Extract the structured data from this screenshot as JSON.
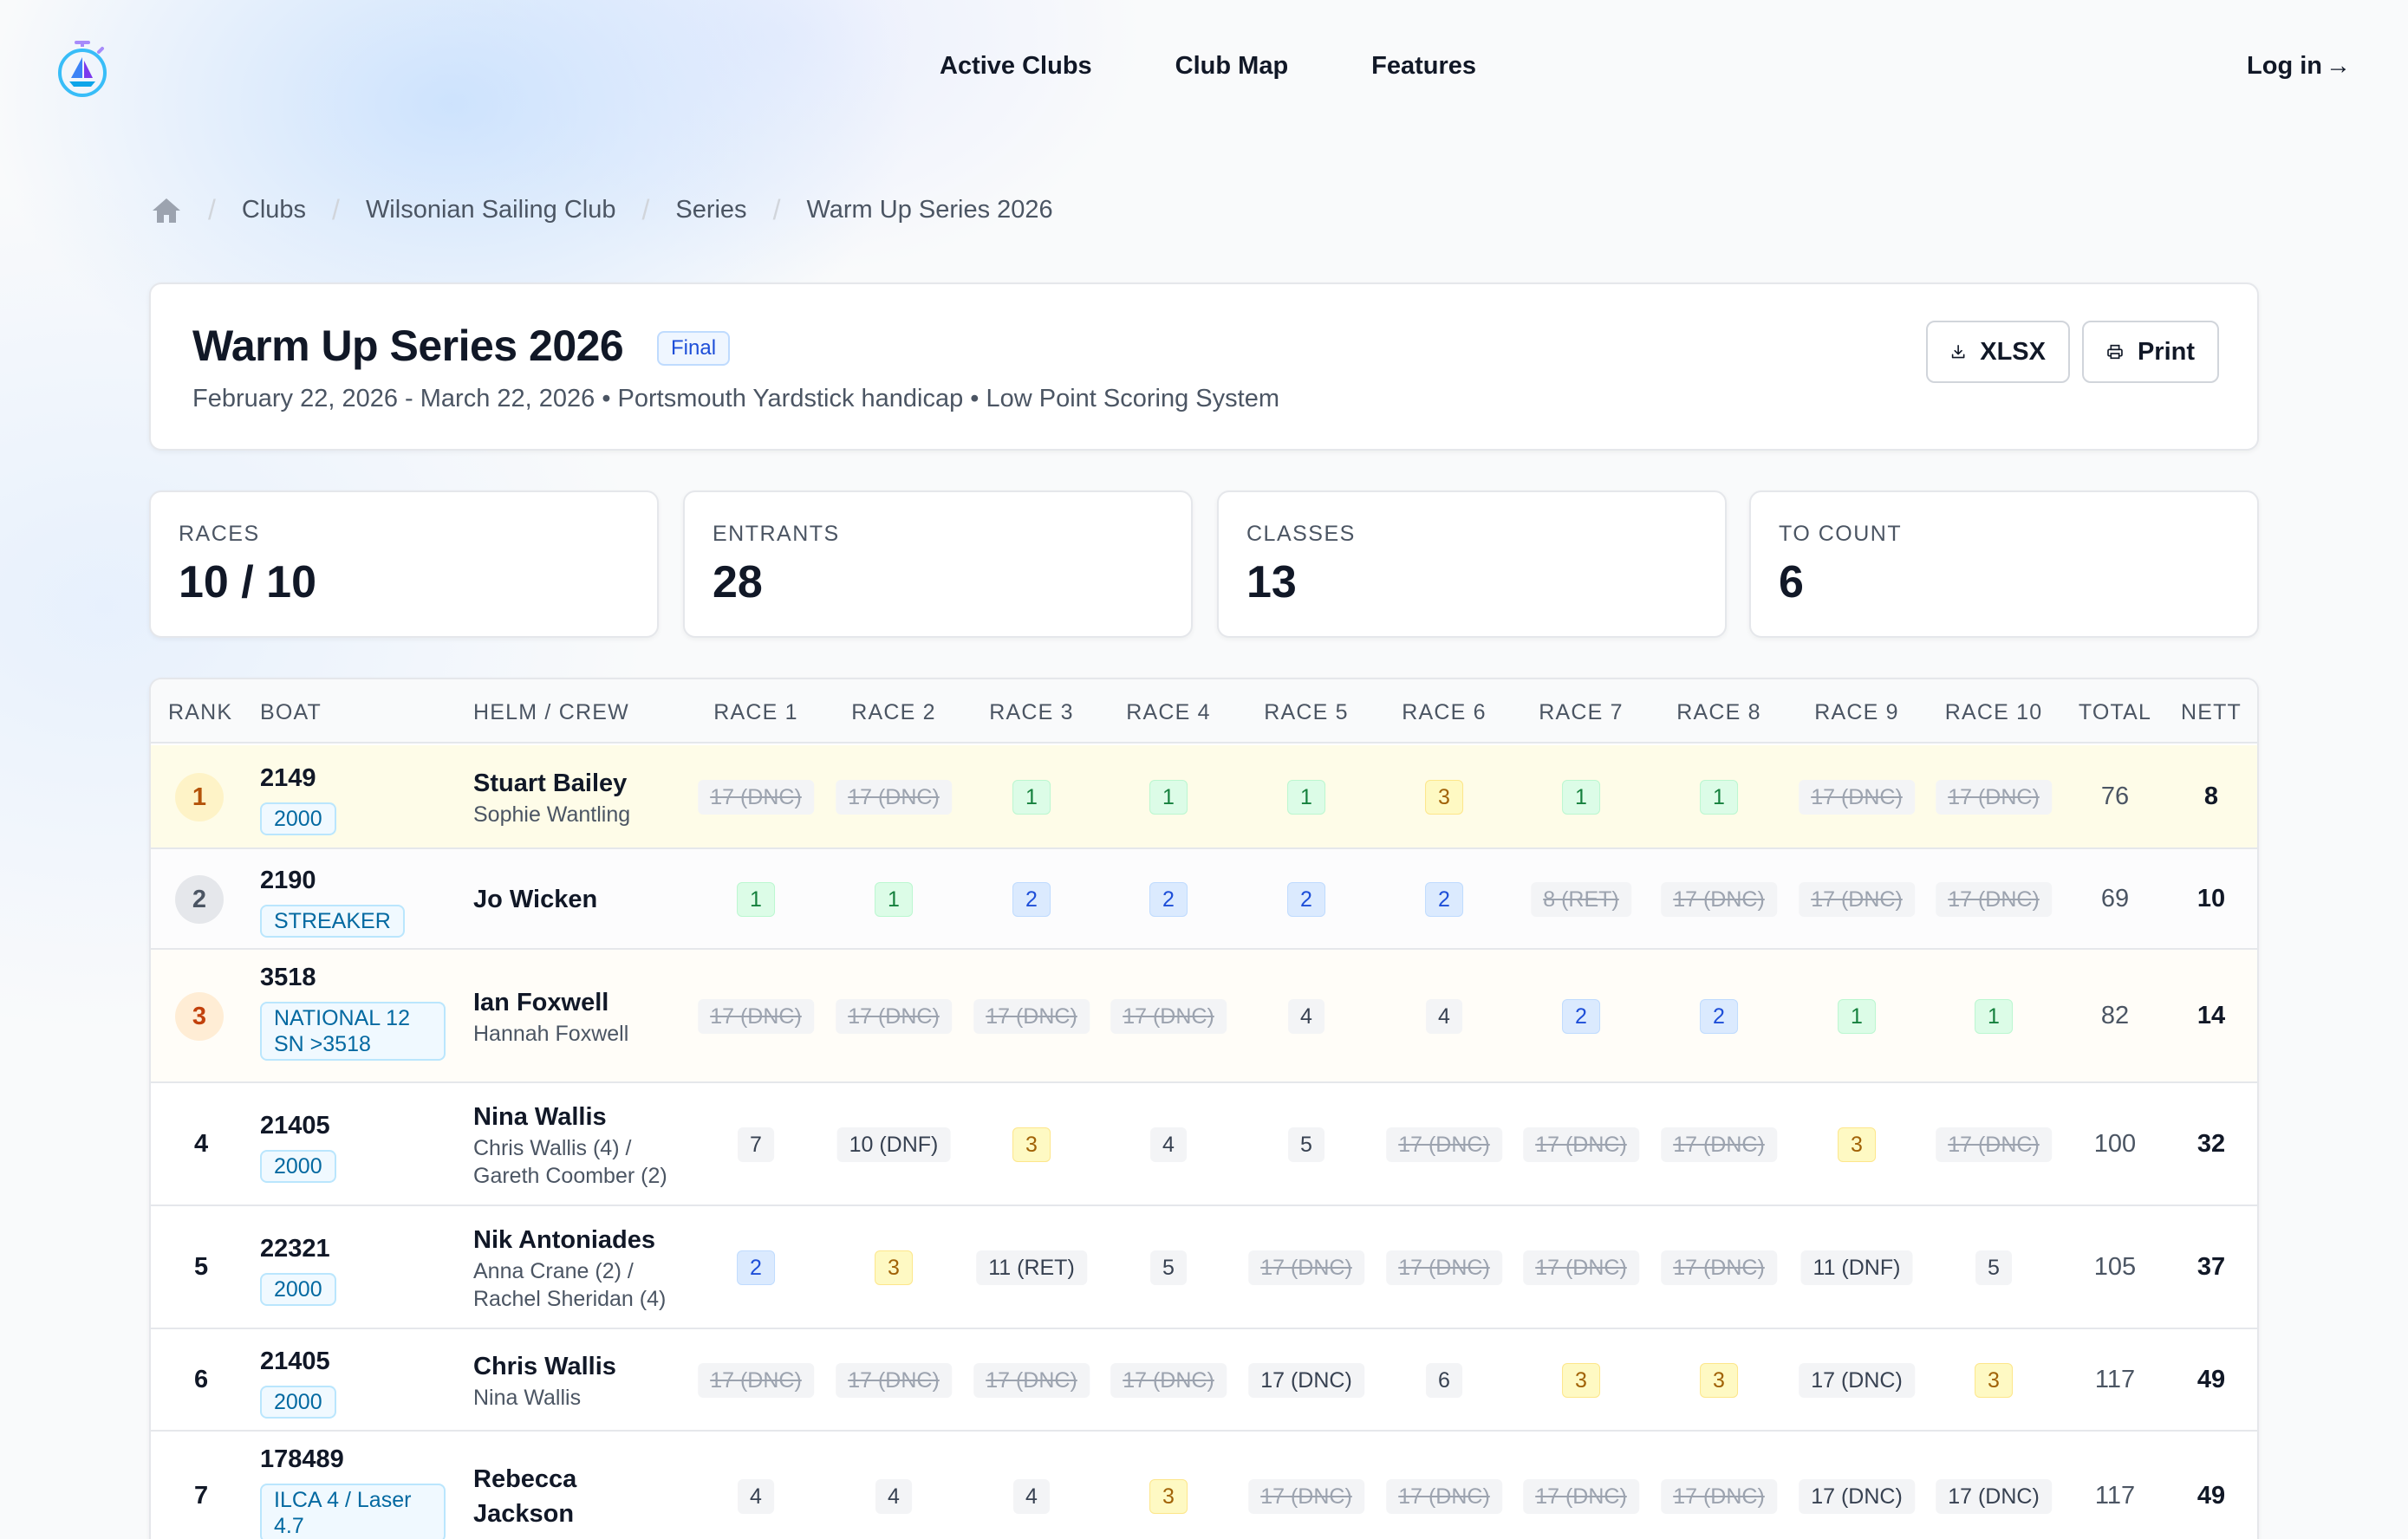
{
  "nav": {
    "logo_icon": "sailboat-logo-icon",
    "links": [
      "Active Clubs",
      "Club Map",
      "Features"
    ],
    "login_label": "Log in",
    "login_arrow": "→"
  },
  "breadcrumb": [
    "Clubs",
    "Wilsonian Sailing Club",
    "Series",
    "Warm Up Series 2026"
  ],
  "series": {
    "title": "Warm Up Series 2026",
    "status": "Final",
    "subtitle": "February 22, 2026 - March 22, 2026 • Portsmouth Yardstick handicap • Low Point Scoring System",
    "xlsx_label": "XLSX",
    "print_label": "Print"
  },
  "stats": [
    {
      "label": "RACES",
      "value": "10 / 10"
    },
    {
      "label": "ENTRANTS",
      "value": "28"
    },
    {
      "label": "CLASSES",
      "value": "13"
    },
    {
      "label": "TO COUNT",
      "value": "6"
    }
  ],
  "table": {
    "headers": [
      "RANK",
      "BOAT",
      "HELM / CREW",
      "RACE 1",
      "RACE 2",
      "RACE 3",
      "RACE 4",
      "RACE 5",
      "RACE 6",
      "RACE 7",
      "RACE 8",
      "RACE 9",
      "RACE 10",
      "TOTAL",
      "NETT"
    ],
    "colors": {
      "gold_row": "#fefce8",
      "silver_circle": "#e5e7eb",
      "bronze_circle": "#ffedd5"
    },
    "rows": [
      {
        "rank": "1",
        "boat": "2149",
        "class": "2000",
        "helm": "Stuart Bailey",
        "crew": "Sophie Wantling",
        "races": [
          "17 (DNC)",
          "17 (DNC)",
          "1",
          "1",
          "1",
          "3",
          "1",
          "1",
          "17 (DNC)",
          "17 (DNC)"
        ],
        "styles": [
          "disc",
          "disc",
          "green",
          "green",
          "green",
          "yellow",
          "green",
          "green",
          "disc",
          "disc"
        ],
        "total": "76",
        "nett": "8"
      },
      {
        "rank": "2",
        "boat": "2190",
        "class": "STREAKER",
        "helm": "Jo Wicken",
        "crew": "",
        "races": [
          "1",
          "1",
          "2",
          "2",
          "2",
          "2",
          "8 (RET)",
          "17 (DNC)",
          "17 (DNC)",
          "17 (DNC)"
        ],
        "styles": [
          "green",
          "green",
          "blue",
          "blue",
          "blue",
          "blue",
          "disc",
          "disc",
          "disc",
          "disc"
        ],
        "total": "69",
        "nett": "10"
      },
      {
        "rank": "3",
        "boat": "3518",
        "class": "NATIONAL 12 SN >3518",
        "helm": "Ian Foxwell",
        "crew": "Hannah Foxwell",
        "races": [
          "17 (DNC)",
          "17 (DNC)",
          "17 (DNC)",
          "17 (DNC)",
          "4",
          "4",
          "2",
          "2",
          "1",
          "1"
        ],
        "styles": [
          "disc",
          "disc",
          "disc",
          "disc",
          "gray",
          "gray",
          "blue",
          "blue",
          "green",
          "green"
        ],
        "total": "82",
        "nett": "14"
      },
      {
        "rank": "4",
        "boat": "21405",
        "class": "2000",
        "helm": "Nina Wallis",
        "crew": "Chris Wallis (4) / Gareth Coomber (2)",
        "races": [
          "7",
          "10 (DNF)",
          "3",
          "4",
          "5",
          "17 (DNC)",
          "17 (DNC)",
          "17 (DNC)",
          "3",
          "17 (DNC)"
        ],
        "styles": [
          "gray",
          "gray",
          "yellow",
          "gray",
          "gray",
          "disc",
          "disc",
          "disc",
          "yellow",
          "disc"
        ],
        "total": "100",
        "nett": "32"
      },
      {
        "rank": "5",
        "boat": "22321",
        "class": "2000",
        "helm": "Nik Antoniades",
        "crew": "Anna Crane (2) / Rachel Sheridan (4)",
        "races": [
          "2",
          "3",
          "11 (RET)",
          "5",
          "17 (DNC)",
          "17 (DNC)",
          "17 (DNC)",
          "17 (DNC)",
          "11 (DNF)",
          "5"
        ],
        "styles": [
          "blue",
          "yellow",
          "gray",
          "gray",
          "disc",
          "disc",
          "disc",
          "disc",
          "gray",
          "gray"
        ],
        "total": "105",
        "nett": "37"
      },
      {
        "rank": "6",
        "boat": "21405",
        "class": "2000",
        "helm": "Chris Wallis",
        "crew": "Nina Wallis",
        "races": [
          "17 (DNC)",
          "17 (DNC)",
          "17 (DNC)",
          "17 (DNC)",
          "17 (DNC)",
          "6",
          "3",
          "3",
          "17 (DNC)",
          "3"
        ],
        "styles": [
          "disc",
          "disc",
          "disc",
          "disc",
          "gray",
          "gray",
          "yellow",
          "yellow",
          "gray",
          "yellow"
        ],
        "total": "117",
        "nett": "49"
      },
      {
        "rank": "7",
        "boat": "178489",
        "class": "ILCA 4 / Laser 4.7",
        "helm": "Rebecca Jackson",
        "crew": "",
        "races": [
          "4",
          "4",
          "4",
          "3",
          "17 (DNC)",
          "17 (DNC)",
          "17 (DNC)",
          "17 (DNC)",
          "17 (DNC)",
          "17 (DNC)"
        ],
        "styles": [
          "gray",
          "gray",
          "gray",
          "yellow",
          "disc",
          "disc",
          "disc",
          "disc",
          "gray",
          "gray"
        ],
        "total": "117",
        "nett": "49"
      }
    ]
  }
}
